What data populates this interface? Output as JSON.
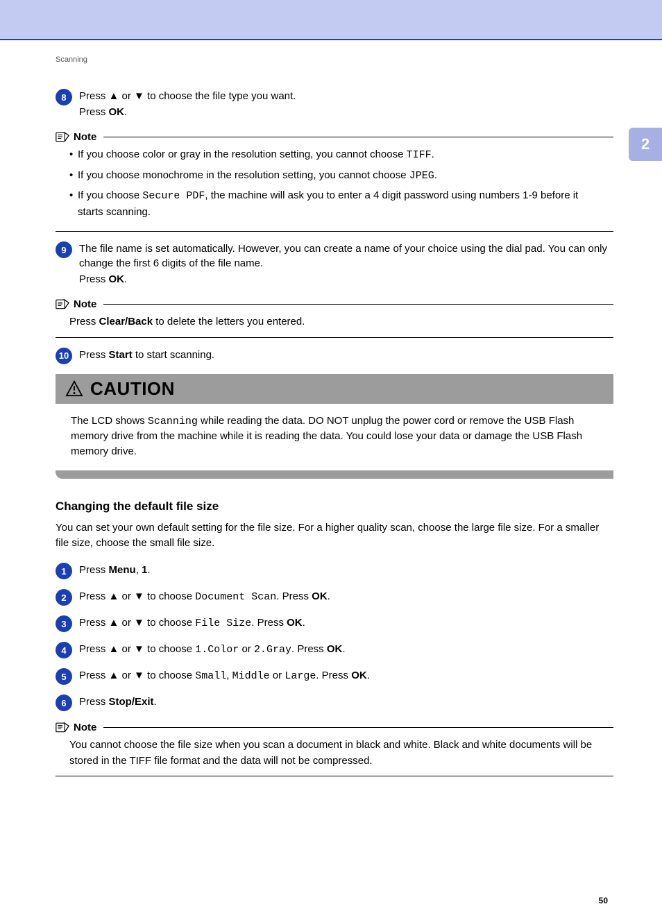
{
  "header": {
    "running": "Scanning"
  },
  "sidetab": {
    "chapter": "2"
  },
  "steps_a": [
    {
      "num": "8",
      "lines": [
        "Press ▲ or ▼ to choose the file type you want.",
        "Press <b>OK</b>."
      ]
    }
  ],
  "note1": {
    "label": "Note",
    "items": [
      "If you choose color or gray in the resolution setting, you cannot choose <span class='mono'>TIFF</span>.",
      "If you choose monochrome in the resolution setting, you cannot choose <span class='mono'>JPEG</span>.",
      "If you choose <span class='mono'>Secure PDF</span>, the machine will ask you to enter a 4 digit password using numbers 1-9 before it starts scanning."
    ]
  },
  "steps_b": [
    {
      "num": "9",
      "lines": [
        "The file name is set automatically. However, you can create a name of your choice using the dial pad. You can only change the first 6 digits of the file name.",
        "Press <b>OK</b>."
      ]
    }
  ],
  "note2": {
    "label": "Note",
    "text": "Press <b>Clear/Back</b> to delete the letters you entered."
  },
  "steps_c": [
    {
      "num": "10",
      "lines": [
        "Press <b>Start</b> to start scanning."
      ]
    }
  ],
  "caution": {
    "label": "CAUTION",
    "text": "The LCD shows <span class='mono'>Scanning</span> while reading the data. DO NOT unplug the power cord or remove the USB Flash memory drive from the machine while it is reading the data. You could lose your data or damage the USB Flash memory drive."
  },
  "section": {
    "heading": "Changing the default file size",
    "intro": "You can set your own default setting for the file size. For a higher quality scan, choose the large file size. For a smaller file size, choose the small file size."
  },
  "steps_d": [
    {
      "num": "1",
      "lines": [
        "Press <b>Menu</b>, <b>1</b>."
      ]
    },
    {
      "num": "2",
      "lines": [
        "Press ▲ or ▼ to choose <span class='mono'>Document Scan</span>. Press <b>OK</b>."
      ]
    },
    {
      "num": "3",
      "lines": [
        "Press ▲ or ▼ to choose <span class='mono'>File Size</span>. Press <b>OK</b>."
      ]
    },
    {
      "num": "4",
      "lines": [
        "Press ▲ or ▼ to choose <span class='mono'>1.Color</span> or <span class='mono'>2.Gray</span>. Press <b>OK</b>."
      ]
    },
    {
      "num": "5",
      "lines": [
        "Press ▲ or ▼ to choose <span class='mono'>Small</span>, <span class='mono'>Middle</span> or <span class='mono'>Large</span>. Press <b>OK</b>."
      ]
    },
    {
      "num": "6",
      "lines": [
        "Press <b>Stop/Exit</b>."
      ]
    }
  ],
  "note3": {
    "label": "Note",
    "text": "You cannot choose the file size when you scan a document in black and white. Black and white documents will be stored in the TIFF file format and the data will not be compressed."
  },
  "footer": {
    "page": "50"
  },
  "colors": {
    "topbar": "#c4cbf3",
    "topbar_border": "#2e3daf",
    "sidetab_bg": "#a7b0e5",
    "step_circle": "#1a3fb5",
    "caution_bg": "#9c9c9c"
  }
}
